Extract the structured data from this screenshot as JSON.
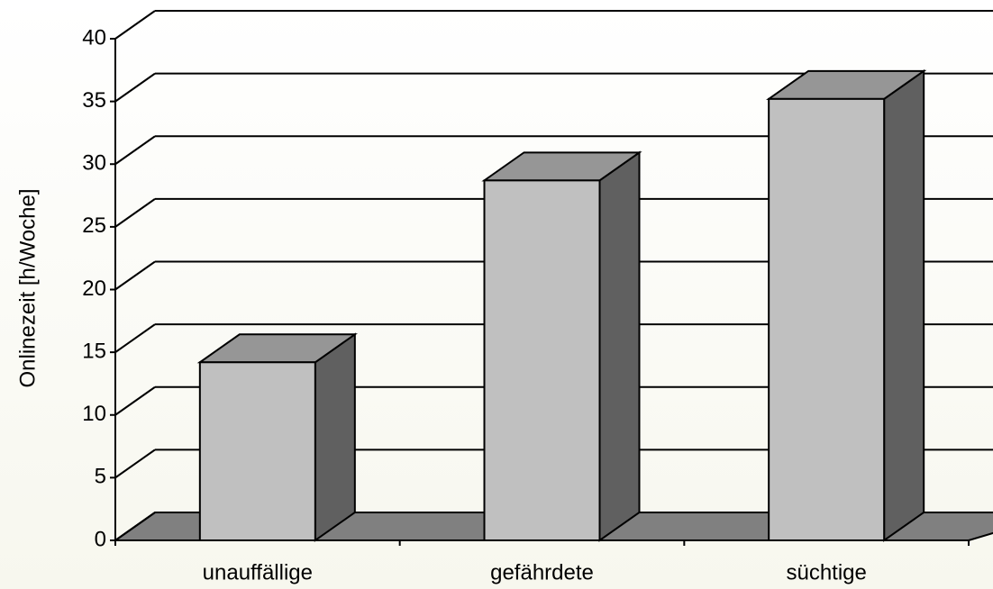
{
  "chart_data": {
    "type": "bar3d",
    "y_label": "Onlinezeit [h/Woche]",
    "categories": [
      "unauffällige",
      "gefährdete",
      "süchtige"
    ],
    "values": [
      14.2,
      28.7,
      35.2
    ],
    "colors": {
      "front": "#c0c0c0",
      "top": "#969696",
      "side": "#606060",
      "floor": "#808080"
    },
    "ylim": [
      0,
      40
    ],
    "yticks": [
      0,
      5,
      10,
      15,
      20,
      25,
      30,
      35,
      40
    ],
    "grid": true
  }
}
